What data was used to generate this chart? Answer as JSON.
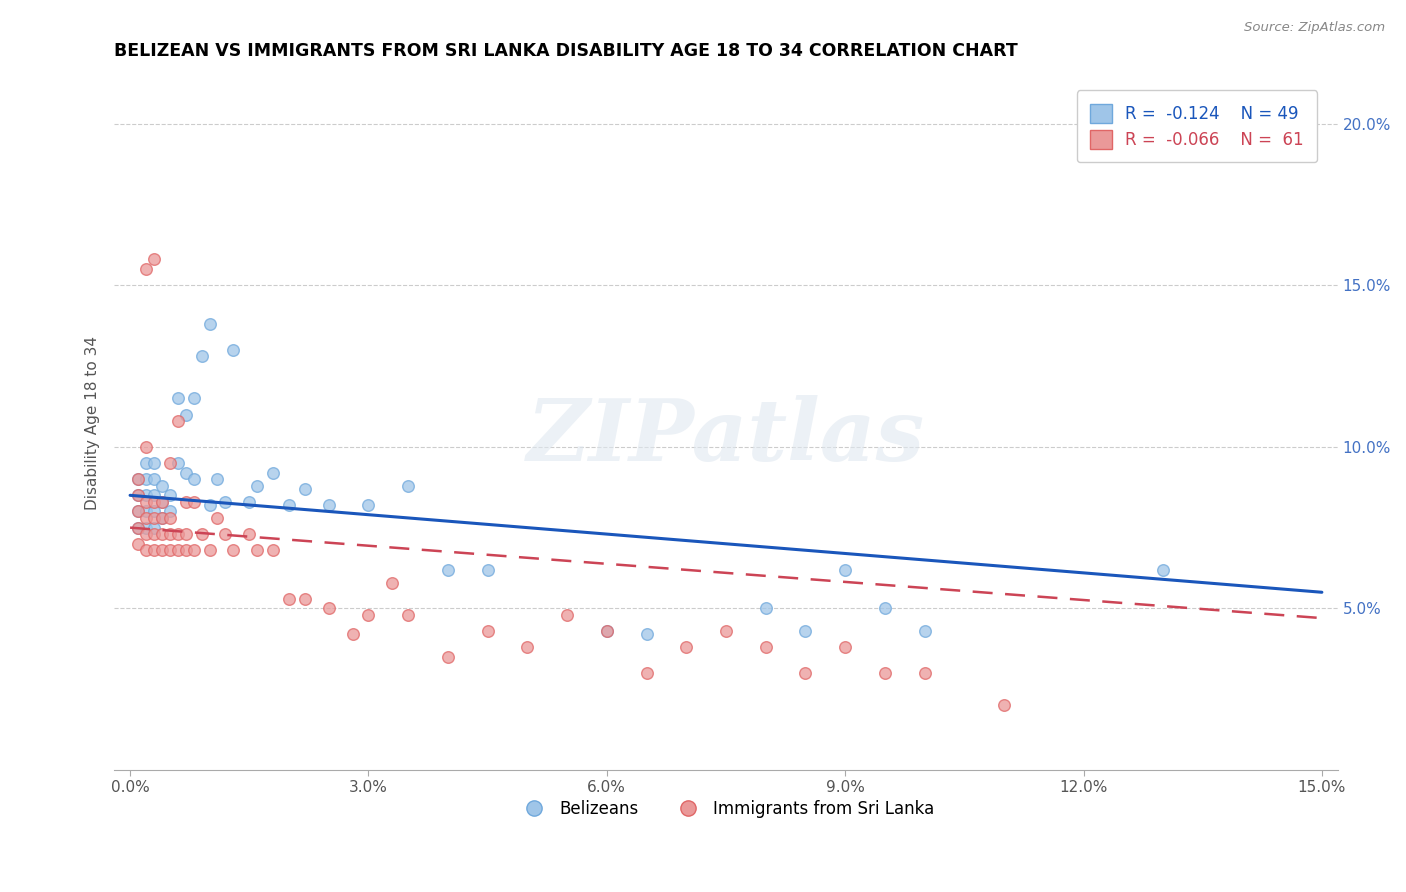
{
  "title": "BELIZEAN VS IMMIGRANTS FROM SRI LANKA DISABILITY AGE 18 TO 34 CORRELATION CHART",
  "source": "Source: ZipAtlas.com",
  "ylabel": "Disability Age 18 to 34",
  "xlim": [
    -0.002,
    0.152
  ],
  "ylim": [
    0.0,
    0.215
  ],
  "xticks": [
    0.0,
    0.03,
    0.06,
    0.09,
    0.12,
    0.15
  ],
  "yticks": [
    0.05,
    0.1,
    0.15,
    0.2
  ],
  "ytick_labels": [
    "5.0%",
    "10.0%",
    "15.0%",
    "20.0%"
  ],
  "xtick_labels": [
    "0.0%",
    "3.0%",
    "6.0%",
    "9.0%",
    "12.0%",
    "15.0%"
  ],
  "blue_R": -0.124,
  "blue_N": 49,
  "pink_R": -0.066,
  "pink_N": 61,
  "blue_color": "#9fc5e8",
  "pink_color": "#ea9999",
  "blue_edge_color": "#6fa8dc",
  "pink_edge_color": "#e06666",
  "blue_line_color": "#1a56bb",
  "pink_line_color": "#cc4455",
  "watermark_text": "ZIPatlas",
  "blue_line_x0": 0.0,
  "blue_line_y0": 0.085,
  "blue_line_x1": 0.15,
  "blue_line_y1": 0.055,
  "pink_line_x0": 0.0,
  "pink_line_y0": 0.075,
  "pink_line_x1": 0.15,
  "pink_line_y1": 0.047,
  "blue_x": [
    0.001,
    0.001,
    0.001,
    0.001,
    0.002,
    0.002,
    0.002,
    0.002,
    0.002,
    0.003,
    0.003,
    0.003,
    0.003,
    0.003,
    0.004,
    0.004,
    0.004,
    0.005,
    0.005,
    0.006,
    0.006,
    0.007,
    0.007,
    0.008,
    0.008,
    0.009,
    0.01,
    0.01,
    0.011,
    0.012,
    0.013,
    0.015,
    0.016,
    0.018,
    0.02,
    0.022,
    0.025,
    0.03,
    0.035,
    0.04,
    0.045,
    0.06,
    0.065,
    0.08,
    0.085,
    0.09,
    0.095,
    0.1,
    0.13
  ],
  "blue_y": [
    0.075,
    0.08,
    0.085,
    0.09,
    0.075,
    0.08,
    0.085,
    0.09,
    0.095,
    0.075,
    0.08,
    0.085,
    0.09,
    0.095,
    0.078,
    0.083,
    0.088,
    0.08,
    0.085,
    0.095,
    0.115,
    0.092,
    0.11,
    0.09,
    0.115,
    0.128,
    0.082,
    0.138,
    0.09,
    0.083,
    0.13,
    0.083,
    0.088,
    0.092,
    0.082,
    0.087,
    0.082,
    0.082,
    0.088,
    0.062,
    0.062,
    0.043,
    0.042,
    0.05,
    0.043,
    0.062,
    0.05,
    0.043,
    0.062
  ],
  "pink_x": [
    0.001,
    0.001,
    0.001,
    0.001,
    0.001,
    0.002,
    0.002,
    0.002,
    0.002,
    0.002,
    0.003,
    0.003,
    0.003,
    0.003,
    0.003,
    0.004,
    0.004,
    0.004,
    0.004,
    0.005,
    0.005,
    0.005,
    0.005,
    0.006,
    0.006,
    0.006,
    0.007,
    0.007,
    0.007,
    0.008,
    0.008,
    0.009,
    0.01,
    0.011,
    0.012,
    0.013,
    0.015,
    0.016,
    0.018,
    0.02,
    0.022,
    0.025,
    0.028,
    0.03,
    0.033,
    0.035,
    0.04,
    0.045,
    0.05,
    0.055,
    0.06,
    0.065,
    0.07,
    0.075,
    0.08,
    0.085,
    0.09,
    0.095,
    0.1,
    0.11,
    0.002
  ],
  "pink_y": [
    0.07,
    0.075,
    0.08,
    0.085,
    0.09,
    0.068,
    0.073,
    0.078,
    0.083,
    0.155,
    0.068,
    0.073,
    0.078,
    0.083,
    0.158,
    0.068,
    0.073,
    0.078,
    0.083,
    0.068,
    0.073,
    0.078,
    0.095,
    0.068,
    0.073,
    0.108,
    0.068,
    0.073,
    0.083,
    0.068,
    0.083,
    0.073,
    0.068,
    0.078,
    0.073,
    0.068,
    0.073,
    0.068,
    0.068,
    0.053,
    0.053,
    0.05,
    0.042,
    0.048,
    0.058,
    0.048,
    0.035,
    0.043,
    0.038,
    0.048,
    0.043,
    0.03,
    0.038,
    0.043,
    0.038,
    0.03,
    0.038,
    0.03,
    0.03,
    0.02,
    0.1
  ]
}
